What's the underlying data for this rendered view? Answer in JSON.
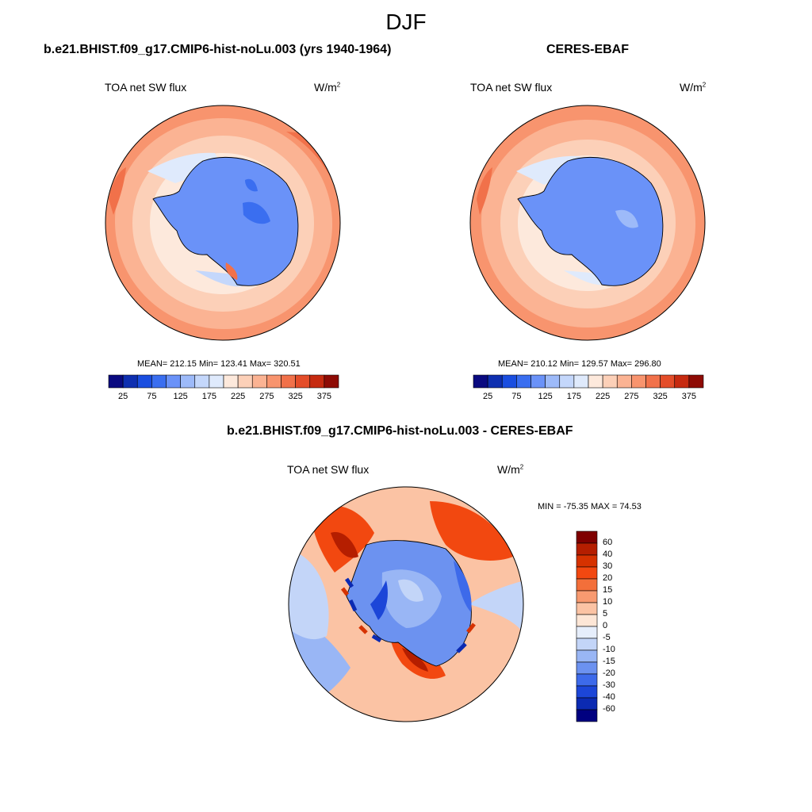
{
  "figure": {
    "title": "DJF"
  },
  "panels": [
    {
      "title": "b.e21.BHIST.f09_g17.CMIP6-hist-noLu.003 (yrs 1940-1964)",
      "variable": "TOA net SW flux",
      "units_base": "W/m",
      "units_exp": "2",
      "stats": "MEAN= 212.15  Min= 123.41  Max= 320.51"
    },
    {
      "title": "CERES-EBAF",
      "variable": "TOA net SW flux",
      "units_base": "W/m",
      "units_exp": "2",
      "stats": "MEAN= 210.12  Min= 129.57  Max= 296.80"
    },
    {
      "title": "b.e21.BHIST.f09_g17.CMIP6-hist-noLu.003 - CERES-EBAF",
      "variable": "TOA net SW flux",
      "units_base": "W/m",
      "units_exp": "2",
      "stats": "MIN = -75.35 MAX =  74.53"
    }
  ],
  "chart_data": [
    {
      "type": "heatmap",
      "projection": "south polar stereographic",
      "variable": "TOA net SW flux",
      "stats": {
        "mean": 212.15,
        "min": 123.41,
        "max": 320.51
      },
      "colorbar": {
        "orientation": "horizontal",
        "levels": [
          0,
          25,
          50,
          75,
          100,
          125,
          150,
          175,
          200,
          225,
          250,
          275,
          300,
          325,
          350,
          375,
          400
        ],
        "tick_labels": [
          "25",
          "75",
          "125",
          "175",
          "225",
          "275",
          "325",
          "375"
        ],
        "colors": [
          "#0a0a80",
          "#0e2fb0",
          "#1a4ee0",
          "#3a6ef0",
          "#6a92f8",
          "#9dbaf9",
          "#c4d7fb",
          "#dfeafc",
          "#fde9dc",
          "#fcd0b8",
          "#fbb393",
          "#f8946e",
          "#f1714a",
          "#e44d29",
          "#c62a10",
          "#8e0b05"
        ]
      }
    },
    {
      "type": "heatmap",
      "projection": "south polar stereographic",
      "variable": "TOA net SW flux",
      "stats": {
        "mean": 210.12,
        "min": 129.57,
        "max": 296.8
      },
      "colorbar": {
        "orientation": "horizontal",
        "levels": [
          0,
          25,
          50,
          75,
          100,
          125,
          150,
          175,
          200,
          225,
          250,
          275,
          300,
          325,
          350,
          375,
          400
        ],
        "tick_labels": [
          "25",
          "75",
          "125",
          "175",
          "225",
          "275",
          "325",
          "375"
        ],
        "colors": [
          "#0a0a80",
          "#0e2fb0",
          "#1a4ee0",
          "#3a6ef0",
          "#6a92f8",
          "#9dbaf9",
          "#c4d7fb",
          "#dfeafc",
          "#fde9dc",
          "#fcd0b8",
          "#fbb393",
          "#f8946e",
          "#f1714a",
          "#e44d29",
          "#c62a10",
          "#8e0b05"
        ]
      }
    },
    {
      "type": "heatmap",
      "projection": "south polar stereographic",
      "variable": "TOA net SW flux",
      "stats": {
        "min": -75.35,
        "max": 74.53
      },
      "colorbar": {
        "orientation": "vertical",
        "tick_labels": [
          "60",
          "40",
          "30",
          "20",
          "15",
          "10",
          "5",
          "0",
          "-5",
          "-10",
          "-15",
          "-20",
          "-30",
          "-40",
          "-60"
        ],
        "colors": [
          "#7f0000",
          "#b51e00",
          "#d63200",
          "#f24810",
          "#f36f3a",
          "#f89a70",
          "#fbc3a4",
          "#fde6d6",
          "#e6eefb",
          "#c3d5f8",
          "#99b6f5",
          "#6c92f0",
          "#3d6aea",
          "#1c46d8",
          "#0b2ab2",
          "#000080"
        ]
      }
    }
  ]
}
